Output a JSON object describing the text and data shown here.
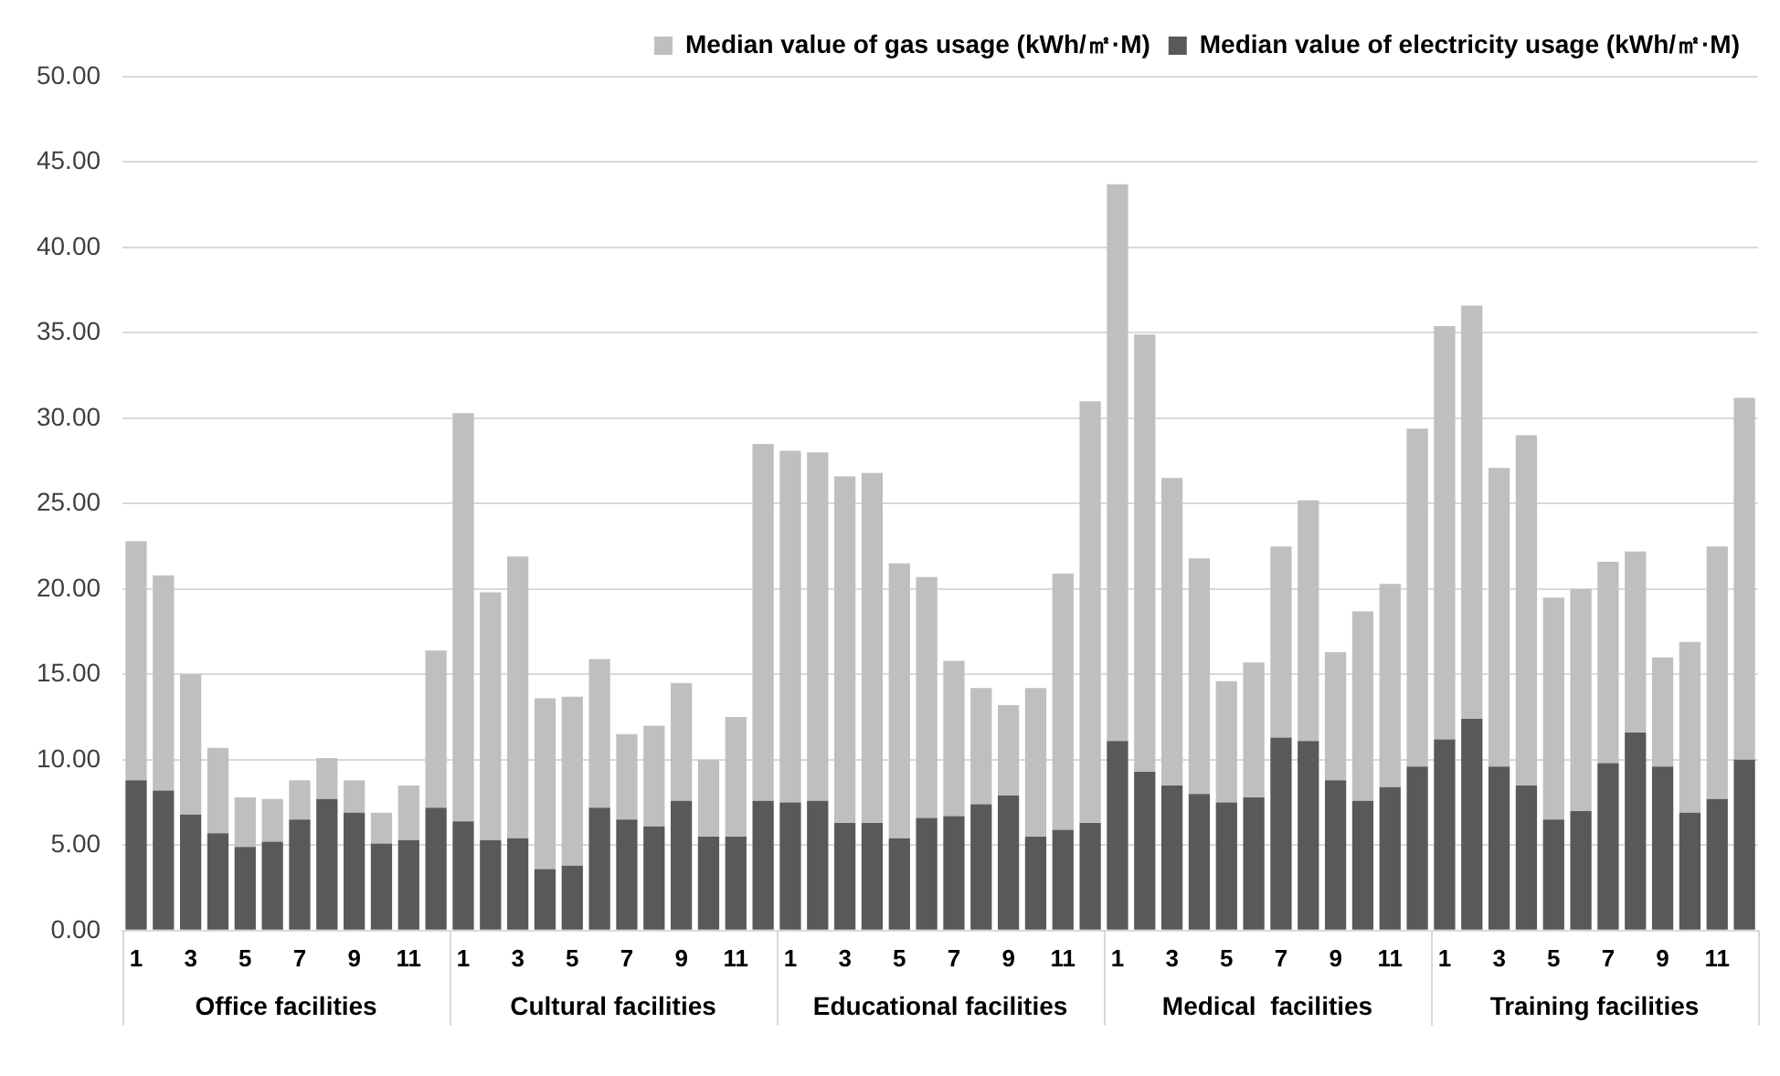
{
  "chart_data": {
    "type": "bar",
    "stacked": true,
    "categories": [
      "1",
      null,
      "3",
      null,
      "5",
      null,
      "7",
      null,
      "9",
      null,
      "11",
      null,
      "1",
      null,
      "3",
      null,
      "5",
      null,
      "7",
      null,
      "9",
      null,
      "11",
      null,
      "1",
      null,
      "3",
      null,
      "5",
      null,
      "7",
      null,
      "9",
      null,
      "11",
      null,
      "1",
      null,
      "3",
      null,
      "5",
      null,
      "7",
      null,
      "9",
      null,
      "11",
      null,
      "1",
      null,
      "3",
      null,
      "5",
      null,
      "7",
      null,
      "9",
      null,
      "11",
      null
    ],
    "series": [
      {
        "name": "Median value of electricity usage (kWh/㎡·M)",
        "color": "#595959",
        "values": [
          8.8,
          8.2,
          6.8,
          5.7,
          4.9,
          5.2,
          6.5,
          7.7,
          6.9,
          5.1,
          5.3,
          7.2,
          6.4,
          5.3,
          5.4,
          3.6,
          3.8,
          7.2,
          6.5,
          6.1,
          7.6,
          5.5,
          5.5,
          7.6,
          7.5,
          7.6,
          6.3,
          6.3,
          5.4,
          6.6,
          6.7,
          7.4,
          7.9,
          5.5,
          5.9,
          6.3,
          11.1,
          9.3,
          8.5,
          8.0,
          7.5,
          7.8,
          11.3,
          11.1,
          8.8,
          7.6,
          8.4,
          9.6,
          11.2,
          12.4,
          9.6,
          8.5,
          6.5,
          7.0,
          9.8,
          11.6,
          9.6,
          6.9,
          7.7,
          10.0
        ]
      },
      {
        "name": "Median value of gas usage (kWh/㎡·M)",
        "color": "#bfbfbf",
        "values": [
          14.0,
          12.6,
          8.2,
          5.0,
          2.9,
          2.5,
          2.3,
          2.4,
          1.9,
          1.8,
          3.2,
          9.2,
          23.9,
          14.5,
          16.5,
          10.0,
          9.9,
          8.7,
          5.0,
          5.9,
          6.9,
          4.5,
          7.0,
          20.9,
          20.6,
          20.4,
          20.3,
          20.5,
          16.1,
          14.1,
          9.1,
          6.8,
          5.3,
          8.7,
          15.0,
          24.7,
          32.6,
          25.6,
          18.0,
          13.8,
          7.1,
          7.9,
          11.2,
          14.1,
          7.5,
          11.1,
          11.9,
          19.8,
          24.2,
          24.2,
          17.5,
          20.5,
          13.0,
          13.0,
          11.8,
          10.6,
          6.4,
          10.0,
          14.8,
          21.2
        ]
      }
    ],
    "ylim": [
      0,
      50
    ],
    "yticks": [
      {
        "value": 0,
        "label": "0.00"
      },
      {
        "value": 5,
        "label": "5.00"
      },
      {
        "value": 10,
        "label": "10.00"
      },
      {
        "value": 15,
        "label": "15.00"
      },
      {
        "value": 20,
        "label": "20.00"
      },
      {
        "value": 25,
        "label": "25.00"
      },
      {
        "value": 30,
        "label": "30.00"
      },
      {
        "value": 35,
        "label": "35.00"
      },
      {
        "value": 40,
        "label": "40.00"
      },
      {
        "value": 45,
        "label": "45.00"
      },
      {
        "value": 50,
        "label": "50.00"
      }
    ],
    "grid": "y",
    "legend": "top right",
    "annotations": [
      "Office facilities",
      "Cultural facilities",
      "Educational facilities",
      "Medical  facilities",
      "Training facilities"
    ]
  }
}
